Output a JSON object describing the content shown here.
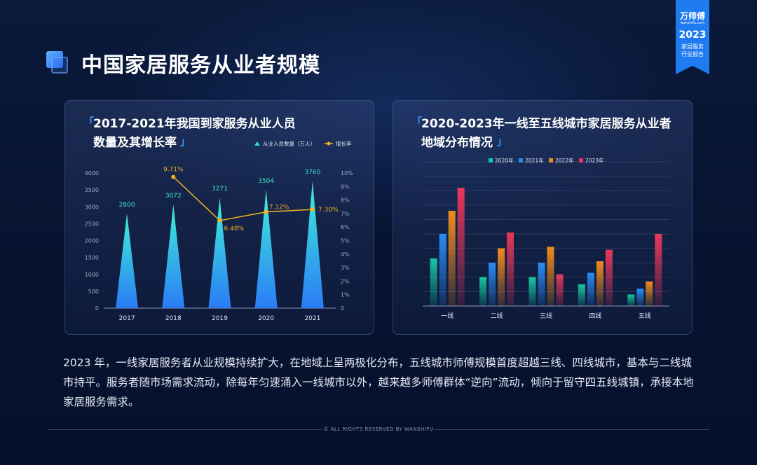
{
  "page": {
    "title": "中国家居服务从业者规模",
    "paragraph": "2023 年，一线家居服务者从业规模持续扩大，在地域上呈两极化分布，五线城市师傅规模首度超越三线、四线城市，基本与二线城市持平。服务者随市场需求流动，除每年匀速涌入一线城市以外，越来越多师傅群体“逆向”流动，倾向于留守四五线城镇，承接本地家居服务需求。",
    "footer": "© ALL RIGHTS RESERVED BY WANSHIFU"
  },
  "badge": {
    "logo": "万师傅",
    "logo_sub": "wanshifu.com",
    "year": "2023",
    "line1": "家居服务",
    "line2": "行业报告",
    "color": "#1e7bf0"
  },
  "left_panel": {
    "title_line1": "2017-2021年我国到家服务从业人员",
    "title_line2": "数量及其增长率"
  },
  "right_panel": {
    "title_line1": "2020-2023年一线至五线城市家居服务从业者",
    "title_line2": "地域分布情况"
  },
  "chart_data": [
    {
      "type": "bar",
      "categories": [
        "2017",
        "2018",
        "2019",
        "2020",
        "2021"
      ],
      "series": [
        {
          "name": "从业人员数量（万人）",
          "values": [
            2800,
            3072,
            3271,
            3504,
            3760
          ],
          "labels": [
            "2800",
            "3072",
            "3271",
            "3504",
            "3760"
          ],
          "color": "#2fd6e0"
        },
        {
          "name": "增长率",
          "type": "line",
          "values": [
            null,
            9.71,
            6.48,
            7.12,
            7.3
          ],
          "labels": [
            "",
            "9.71%",
            "6.48%",
            "7.12%",
            "7.30%"
          ],
          "color": "#f5b31c"
        }
      ],
      "y_ticks": [
        "0",
        "500",
        "1000",
        "1500",
        "2000",
        "2500",
        "3000",
        "3500",
        "4000"
      ],
      "y2_ticks": [
        "0",
        "1%",
        "2%",
        "3%",
        "4%",
        "5%",
        "6%",
        "7%",
        "8%",
        "9%",
        "10%"
      ],
      "ylim": [
        0,
        4000
      ],
      "y2lim": [
        0,
        10
      ],
      "legend": "top-right"
    },
    {
      "type": "bar",
      "categories": [
        "一线",
        "二线",
        "三线",
        "四线",
        "五线"
      ],
      "series": [
        {
          "name": "2020年",
          "values": [
            33,
            20,
            20,
            15,
            8
          ],
          "color": "#14c7a3"
        },
        {
          "name": "2021年",
          "values": [
            50,
            30,
            30,
            23,
            12
          ],
          "color": "#2a8cf5"
        },
        {
          "name": "2022年",
          "values": [
            66,
            40,
            41,
            31,
            17
          ],
          "color": "#f28c1c"
        },
        {
          "name": "2023年",
          "values": [
            82,
            51,
            22,
            39,
            50
          ],
          "color": "#e8385a"
        }
      ],
      "ylim": [
        0,
        100
      ],
      "grid": true,
      "legend": "top"
    }
  ]
}
